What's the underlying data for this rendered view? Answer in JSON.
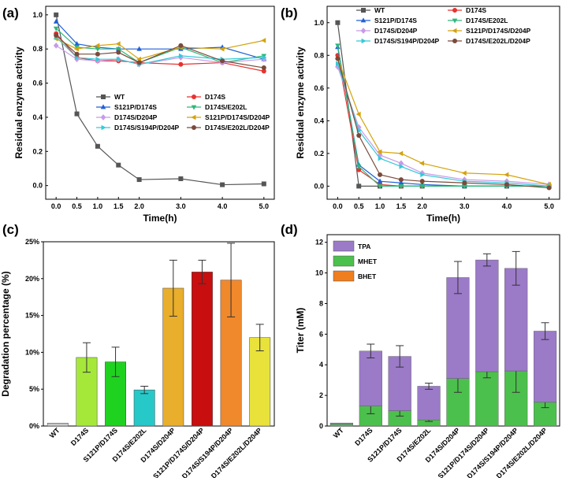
{
  "chart_data": [
    {
      "panel": "(a)",
      "type": "line",
      "x": [
        0.0,
        0.5,
        1.0,
        1.5,
        2.0,
        3.0,
        4.0,
        5.0
      ],
      "xticks": [
        "0.0",
        "0.5",
        "1.0",
        "1.5",
        "2.0",
        "3.0",
        "4.0",
        "5.0"
      ],
      "xlabel": "Time(h)",
      "ylabel": "Residual enzyme activity",
      "ylim": [
        -0.08,
        1.05
      ],
      "yticks": [
        "0.0",
        "0.2",
        "0.4",
        "0.6",
        "0.8",
        "1.0"
      ],
      "legend_position": "center-right",
      "series": [
        {
          "name": "WT",
          "color": "#555555",
          "marker": "square",
          "values": [
            1.0,
            0.42,
            0.23,
            0.12,
            0.035,
            0.04,
            0.005,
            0.01
          ]
        },
        {
          "name": "D174S",
          "color": "#e8322f",
          "marker": "circle",
          "values": [
            0.89,
            0.75,
            0.73,
            0.73,
            0.72,
            0.71,
            0.72,
            0.67
          ]
        },
        {
          "name": "S121P/D174S",
          "color": "#2060d8",
          "marker": "triangle-up",
          "values": [
            0.96,
            0.83,
            0.81,
            0.8,
            0.8,
            0.8,
            0.81,
            0.74
          ]
        },
        {
          "name": "D174S/E202L",
          "color": "#2db87a",
          "marker": "triangle-down",
          "values": [
            0.92,
            0.81,
            0.8,
            0.8,
            0.72,
            0.81,
            0.72,
            0.76
          ]
        },
        {
          "name": "D174S/D204P",
          "color": "#c79be8",
          "marker": "diamond",
          "values": [
            0.82,
            0.74,
            0.73,
            0.74,
            0.71,
            0.75,
            0.72,
            0.74
          ]
        },
        {
          "name": "S121P/D174S/D204P",
          "color": "#d4a20a",
          "marker": "triangle-left",
          "values": [
            0.86,
            0.8,
            0.82,
            0.83,
            0.74,
            0.81,
            0.8,
            0.85
          ]
        },
        {
          "name": "D174S/S194P/D204P",
          "color": "#36c9d8",
          "marker": "triangle-right",
          "values": [
            0.87,
            0.75,
            0.74,
            0.74,
            0.71,
            0.76,
            0.74,
            0.75
          ]
        },
        {
          "name": "D174S/E202L/D204P",
          "color": "#7a4a3a",
          "marker": "circle",
          "values": [
            0.88,
            0.77,
            0.77,
            0.78,
            0.72,
            0.82,
            0.73,
            0.69
          ]
        }
      ]
    },
    {
      "panel": "(b)",
      "type": "line",
      "x": [
        0.0,
        0.5,
        1.0,
        1.5,
        2.0,
        3.0,
        4.0,
        5.0
      ],
      "xticks": [
        "0.0",
        "0.5",
        "1.0",
        "1.5",
        "2.0",
        "3.0",
        "4.0",
        "5.0"
      ],
      "xlabel": "Time(h)",
      "ylabel": "Residual enzyme activity",
      "ylim": [
        -0.08,
        1.1
      ],
      "yticks": [
        "0.0",
        "0.2",
        "0.4",
        "0.6",
        "0.8",
        "1.0"
      ],
      "legend_position": "top",
      "series": [
        {
          "name": "WT",
          "color": "#555555",
          "marker": "square",
          "values": [
            1.0,
            0.0,
            0.0,
            0.0,
            0.0,
            0.0,
            0.0,
            0.0
          ]
        },
        {
          "name": "D174S",
          "color": "#e8322f",
          "marker": "circle",
          "values": [
            0.8,
            0.1,
            0.01,
            0.0,
            0.0,
            0.0,
            0.0,
            0.0
          ]
        },
        {
          "name": "S121P/D174S",
          "color": "#2060d8",
          "marker": "triangle-up",
          "values": [
            0.85,
            0.13,
            0.03,
            0.02,
            0.01,
            0.0,
            0.0,
            0.0
          ]
        },
        {
          "name": "D174S/E202L",
          "color": "#2db87a",
          "marker": "triangle-down",
          "values": [
            0.86,
            0.12,
            0.0,
            0.0,
            0.0,
            0.0,
            0.0,
            0.0
          ]
        },
        {
          "name": "D174S/D204P",
          "color": "#c79be8",
          "marker": "diamond",
          "values": [
            0.73,
            0.36,
            0.19,
            0.14,
            0.08,
            0.04,
            0.03,
            0.01
          ]
        },
        {
          "name": "S121P/D174S/D204P",
          "color": "#d4a20a",
          "marker": "triangle-left",
          "values": [
            0.78,
            0.44,
            0.21,
            0.2,
            0.14,
            0.08,
            0.07,
            0.01
          ]
        },
        {
          "name": "D174S/S194P/D204P",
          "color": "#36c9d8",
          "marker": "triangle-right",
          "values": [
            0.75,
            0.34,
            0.17,
            0.12,
            0.07,
            0.03,
            0.02,
            0.0
          ]
        },
        {
          "name": "D174S/E202L/D204P",
          "color": "#7a4a3a",
          "marker": "circle",
          "values": [
            0.78,
            0.31,
            0.07,
            0.04,
            0.03,
            0.02,
            0.01,
            -0.01
          ]
        }
      ]
    },
    {
      "panel": "(c)",
      "type": "bar",
      "categories": [
        "WT",
        "D174S",
        "S121P/D174S",
        "D174S/E202L",
        "D174S/D204P",
        "S121P/D174S/D204P",
        "D174S/S194P/D204P",
        "D174S/E202L/D204P"
      ],
      "values": [
        0.4,
        9.3,
        8.7,
        4.9,
        18.7,
        20.9,
        19.8,
        12.0
      ],
      "errors": [
        0.1,
        2.0,
        2.0,
        0.5,
        3.8,
        1.6,
        5.0,
        1.8
      ],
      "colors": [
        "#c8c8c8",
        "#a5e83a",
        "#1fd21f",
        "#27c8c8",
        "#e8ae2c",
        "#c80e0e",
        "#f0882c",
        "#e8e23a"
      ],
      "ylabel": "Degradation percentage (%)",
      "ylim": [
        0,
        25
      ],
      "yticks": [
        "0%",
        "5%",
        "10%",
        "15%",
        "20%",
        "25%"
      ]
    },
    {
      "panel": "(d)",
      "type": "bar",
      "stacked": true,
      "categories": [
        "WT",
        "D174S",
        "S121P/D174S",
        "D174S/E202L",
        "D174S/D204P",
        "S121P/D174S/D204P",
        "D174S/S194P/D204P",
        "D174S/E202L/D204P"
      ],
      "ylabel": "Titer (mM)",
      "ylim": [
        0,
        12.5
      ],
      "yticks": [
        "0",
        "2",
        "4",
        "6",
        "8",
        "10",
        "12"
      ],
      "legend_position": "top-left",
      "series": [
        {
          "name": "BHET",
          "color": "#f07d1e",
          "values": [
            0,
            0,
            0,
            0,
            0,
            0,
            0,
            0
          ],
          "errors": [
            0,
            0,
            0,
            0,
            0,
            0,
            0,
            0
          ]
        },
        {
          "name": "MHET",
          "color": "#4cc04c",
          "values": [
            0.12,
            1.3,
            1.0,
            0.4,
            3.1,
            3.55,
            3.6,
            1.55
          ],
          "errors": [
            0.05,
            0.5,
            0.35,
            0.1,
            0.9,
            0.4,
            1.4,
            0.35
          ]
        },
        {
          "name": "TPA",
          "color": "#9b7ac8",
          "values": [
            0.08,
            3.6,
            3.55,
            2.2,
            6.6,
            7.3,
            6.7,
            4.65
          ],
          "errors": [
            0.05,
            0.45,
            0.7,
            0.2,
            1.05,
            0.4,
            1.1,
            0.55
          ]
        }
      ]
    }
  ]
}
